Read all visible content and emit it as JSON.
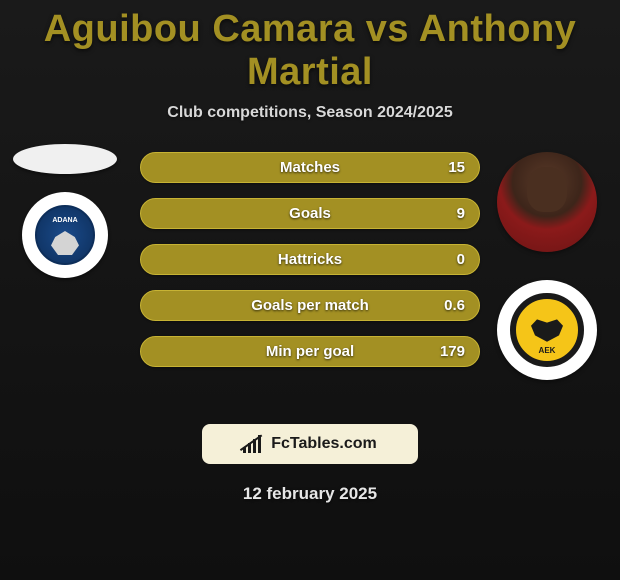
{
  "title_text": "Aguibou Camara vs Anthony Martial",
  "title_color": "#a39023",
  "subtitle": "Club competitions, Season 2024/2025",
  "bar_color": "#a39023",
  "bar_border": "#c7b334",
  "stats": [
    {
      "label": "Matches",
      "value": "15"
    },
    {
      "label": "Goals",
      "value": "9"
    },
    {
      "label": "Hattricks",
      "value": "0"
    },
    {
      "label": "Goals per match",
      "value": "0.6"
    },
    {
      "label": "Min per goal",
      "value": "179"
    }
  ],
  "logo": {
    "bg": "#f5f0d8",
    "text": "FcTables.com",
    "text_color": "#1a1a1a"
  },
  "date": "12 february 2025",
  "left_player": "Aguibou Camara",
  "left_club": "Adana Demirspor",
  "right_player": "Anthony Martial",
  "right_club": "AEK",
  "aek_label": "AEK"
}
